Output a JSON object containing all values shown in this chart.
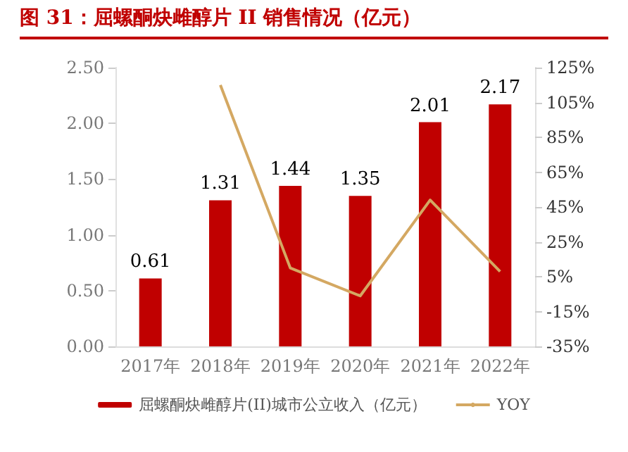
{
  "chart_data": {
    "type": "bar",
    "title": "图 31：屈螺酮炔雌醇片 II 销售情况（亿元）",
    "categories": [
      "2017年",
      "2018年",
      "2019年",
      "2020年",
      "2021年",
      "2022年"
    ],
    "series": [
      {
        "name": "屈螺酮炔雌醇片(II)城市公立收入（亿元）",
        "color": "#c00000",
        "values": [
          0.61,
          1.31,
          1.44,
          1.35,
          2.01,
          2.17
        ],
        "value_labels": [
          "0.61",
          "1.31",
          "1.44",
          "1.35",
          "2.01",
          "2.17"
        ]
      },
      {
        "name": "YOY",
        "type": "line",
        "axis": "y2",
        "color": "#d4a862",
        "values": [
          null,
          115,
          10,
          -6,
          49,
          8
        ]
      }
    ],
    "ylim": [
      0,
      2.5
    ],
    "yticks": [
      {
        "value": 0,
        "label": "0.00"
      },
      {
        "value": 0.5,
        "label": "0.50"
      },
      {
        "value": 1,
        "label": "1.00"
      },
      {
        "value": 1.5,
        "label": "1.50"
      },
      {
        "value": 2,
        "label": "2.00"
      },
      {
        "value": 2.5,
        "label": "2.50"
      }
    ],
    "y2lim": [
      -35,
      125
    ],
    "y2ticks": [
      {
        "value": -35,
        "label": "-35%"
      },
      {
        "value": -15,
        "label": "-15%"
      },
      {
        "value": 5,
        "label": "5%"
      },
      {
        "value": 25,
        "label": "25%"
      },
      {
        "value": 45,
        "label": "45%"
      },
      {
        "value": 65,
        "label": "65%"
      },
      {
        "value": 85,
        "label": "85%"
      },
      {
        "value": 105,
        "label": "105%"
      },
      {
        "value": 125,
        "label": "125%"
      }
    ],
    "grid": false,
    "legend": "bottom"
  }
}
